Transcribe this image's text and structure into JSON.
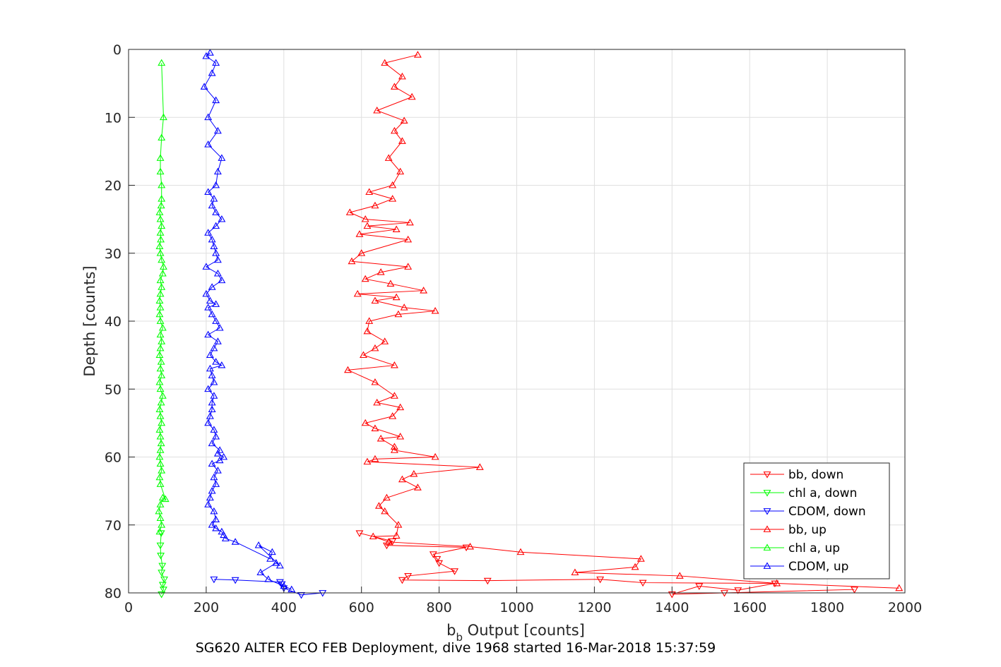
{
  "chart_data": {
    "type": "line",
    "caption": "SG620 ALTER ECO FEB Deployment, dive 1968 started 16-Mar-2018 15:37:59",
    "xlabel_main": "b",
    "xlabel_sub": "b",
    "xlabel_rest": " Output [counts]",
    "ylabel": "Depth [counts]",
    "xlim": [
      0,
      2000
    ],
    "ylim": [
      0,
      80
    ],
    "y_reversed": true,
    "grid": true,
    "legend_placement": "bottom-right",
    "xticks": [
      "0",
      "200",
      "400",
      "600",
      "800",
      "1000",
      "1200",
      "1400",
      "1600",
      "1800",
      "2000"
    ],
    "yticks": [
      "0",
      "10",
      "20",
      "30",
      "40",
      "50",
      "60",
      "70",
      "80"
    ],
    "series": [
      {
        "name": "bb, down",
        "color": "#ff0000",
        "marker": "triangle-down",
        "x": [
          1870,
          1535,
          1400,
          1470,
          1570,
          1665,
          1325,
          1215,
          925,
          705,
          720,
          840,
          800,
          795,
          785,
          870,
          665,
          680,
          595
        ],
        "y": [
          79.5,
          80.0,
          80.2,
          79.0,
          79.6,
          78.6,
          78.5,
          78.0,
          78.2,
          78.1,
          77.5,
          76.8,
          75.6,
          75.0,
          74.3,
          73.3,
          73.0,
          72.4,
          71.2
        ]
      },
      {
        "name": "chl a, down",
        "color": "#00ff00",
        "marker": "triangle-down",
        "x": [
          85,
          90,
          88,
          92,
          85,
          87,
          83,
          82,
          84
        ],
        "y": [
          80.2,
          79.5,
          78.8,
          78.0,
          77.0,
          76.0,
          74.5,
          73.0,
          71.2
        ]
      },
      {
        "name": "CDOM, down",
        "color": "#0000ff",
        "marker": "triangle-down",
        "x": [
          500,
          445,
          400,
          395,
          390,
          275,
          220
        ],
        "y": [
          80.0,
          80.3,
          79.3,
          78.7,
          78.4,
          78.1,
          78.0
        ]
      },
      {
        "name": "bb, up",
        "color": "#ff0000",
        "marker": "triangle-up",
        "x": [
          1985,
          1670,
          1420,
          1150,
          1305,
          1320,
          1010,
          880,
          670,
          630,
          690,
          695,
          660,
          645,
          665,
          745,
          705,
          735,
          905,
          615,
          635,
          790,
          685,
          685,
          650,
          700,
          635,
          610,
          680,
          700,
          640,
          685,
          635,
          565,
          685,
          605,
          635,
          660,
          615,
          620,
          695,
          790,
          710,
          635,
          690,
          590,
          760,
          675,
          610,
          650,
          720,
          575,
          600,
          720,
          595,
          690,
          615,
          725,
          610,
          570,
          635,
          680,
          620,
          680,
          700,
          670,
          705,
          685,
          710,
          640,
          730,
          685,
          705,
          660,
          745
        ],
        "y": [
          79.3,
          78.6,
          77.5,
          77.0,
          76.2,
          75.0,
          74.0,
          73.2,
          72.5,
          71.7,
          71.6,
          70.0,
          68.0,
          67.2,
          66.0,
          64.5,
          63.3,
          62.5,
          61.5,
          60.7,
          60.3,
          60.0,
          59.0,
          58.5,
          57.3,
          57.0,
          55.8,
          55.0,
          54.0,
          52.7,
          52.0,
          51.0,
          49.0,
          47.2,
          46.5,
          45.0,
          44.0,
          43.0,
          41.5,
          40.0,
          39.0,
          38.5,
          38.0,
          37.0,
          36.5,
          36.0,
          35.5,
          34.5,
          33.8,
          32.8,
          32.0,
          31.2,
          30.0,
          28.0,
          27.2,
          26.5,
          26.0,
          25.5,
          25.0,
          24.0,
          23.0,
          22.0,
          21.0,
          20.0,
          18.0,
          16.0,
          13.5,
          12.0,
          10.5,
          9.0,
          7.0,
          5.5,
          4.0,
          2.0,
          0.8
        ]
      },
      {
        "name": "chl a, up",
        "color": "#00ff00",
        "marker": "triangle-up",
        "x": [
          80,
          85,
          82,
          78,
          82,
          88,
          95,
          82,
          80,
          85,
          82,
          80,
          82,
          84,
          82,
          80,
          85,
          82,
          80,
          84,
          88,
          82,
          80,
          85,
          82,
          84,
          80,
          82,
          85,
          82,
          88,
          82,
          80,
          82,
          80,
          82,
          85,
          82,
          88,
          90,
          85,
          82,
          80,
          83,
          82,
          85,
          82,
          80,
          84,
          85,
          85,
          82,
          82,
          85,
          90,
          85
        ],
        "y": [
          71.0,
          70.0,
          69.0,
          68.0,
          67.0,
          66.0,
          66.2,
          64.0,
          63.0,
          62.0,
          61.0,
          60.0,
          59.0,
          58.0,
          57.0,
          56.0,
          55.0,
          54.0,
          53.0,
          52.0,
          51.0,
          50.0,
          49.0,
          48.0,
          47.0,
          46.0,
          45.0,
          44.0,
          43.0,
          42.0,
          41.0,
          40.0,
          39.0,
          38.0,
          37.0,
          36.0,
          35.0,
          34.0,
          33.0,
          32.0,
          31.0,
          30.0,
          29.0,
          28.0,
          27.0,
          26.0,
          25.0,
          24.0,
          23.0,
          22.0,
          20.0,
          18.0,
          16.0,
          13.0,
          10.0,
          2.0
        ]
      },
      {
        "name": "CDOM, up",
        "color": "#0000ff",
        "marker": "triangle-up",
        "x": [
          420,
          400,
          360,
          340,
          380,
          390,
          335,
          370,
          365,
          275,
          250,
          245,
          240,
          225,
          215,
          225,
          220,
          205,
          210,
          215,
          225,
          220,
          230,
          215,
          235,
          245,
          230,
          235,
          215,
          225,
          220,
          205,
          210,
          215,
          215,
          220,
          205,
          220,
          215,
          210,
          240,
          225,
          210,
          220,
          230,
          205,
          235,
          225,
          215,
          205,
          225,
          210,
          200,
          215,
          240,
          230,
          200,
          230,
          225,
          220,
          215,
          205,
          225,
          240,
          225,
          215,
          220,
          205,
          225,
          230,
          240,
          205,
          230,
          205,
          225,
          195,
          215,
          225,
          200,
          210
        ],
        "y": [
          79.5,
          79.0,
          78.0,
          77.0,
          75.6,
          76.0,
          73.0,
          74.0,
          75.0,
          72.5,
          72.0,
          71.5,
          71.0,
          70.5,
          70.0,
          69.2,
          68.0,
          67.0,
          66.0,
          65.0,
          64.0,
          63.0,
          62.0,
          61.0,
          60.5,
          60.0,
          59.5,
          59.0,
          58.0,
          57.0,
          56.0,
          55.0,
          54.0,
          53.0,
          52.0,
          51.0,
          50.0,
          49.0,
          48.0,
          47.0,
          46.5,
          46.0,
          45.0,
          44.0,
          43.0,
          42.0,
          41.0,
          40.0,
          39.0,
          38.0,
          37.5,
          37.0,
          36.0,
          35.0,
          34.0,
          33.0,
          32.0,
          31.0,
          30.0,
          29.0,
          28.0,
          27.0,
          26.0,
          25.0,
          24.0,
          23.0,
          22.0,
          21.0,
          20.0,
          18.0,
          16.0,
          14.0,
          12.0,
          10.0,
          7.5,
          5.5,
          3.5,
          2.0,
          1.0,
          0.5
        ]
      }
    ]
  }
}
